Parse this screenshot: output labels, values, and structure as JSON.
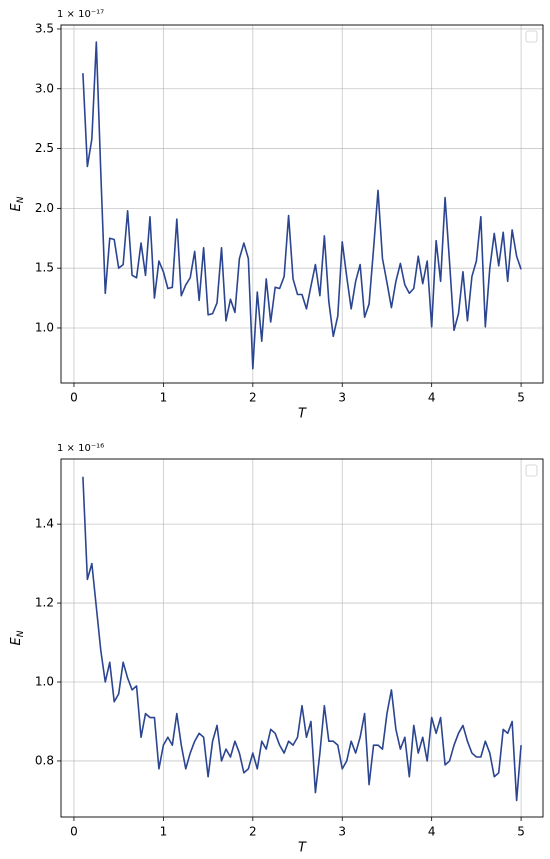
{
  "chart_data": [
    {
      "type": "line",
      "offset_text": "1 × 10⁻¹⁷",
      "xlabel": "T",
      "ylabel": {
        "base": "E",
        "sub": "N"
      },
      "color": "#2b4590",
      "grid": true,
      "legend": "upper right",
      "xlim": [
        -0.145,
        5.245
      ],
      "ylim": [
        0.54,
        3.533
      ],
      "xticks": [
        0,
        1,
        2,
        3,
        4,
        5
      ],
      "yticks": [
        {
          "value": 1,
          "label": "1.0"
        },
        1.5,
        {
          "value": 2,
          "label": "2.0"
        },
        2.5,
        {
          "value": 3,
          "label": "3.0"
        },
        3.5
      ],
      "x": [
        0.1,
        0.15,
        0.2,
        0.25,
        0.3,
        0.35,
        0.4,
        0.45,
        0.5,
        0.55,
        0.6,
        0.65,
        0.7,
        0.75,
        0.8,
        0.85,
        0.9,
        0.95,
        1.0,
        1.05,
        1.1,
        1.15,
        1.2,
        1.25,
        1.3,
        1.35,
        1.4,
        1.45,
        1.5,
        1.55,
        1.6,
        1.65,
        1.7,
        1.75,
        1.8,
        1.85,
        1.9,
        1.95,
        2.0,
        2.05,
        2.1,
        2.15,
        2.2,
        2.25,
        2.3,
        2.35,
        2.4,
        2.45,
        2.5,
        2.55,
        2.6,
        2.65,
        2.7,
        2.75,
        2.8,
        2.85,
        2.9,
        2.95,
        3.0,
        3.05,
        3.1,
        3.15,
        3.2,
        3.25,
        3.3,
        3.35,
        3.4,
        3.45,
        3.5,
        3.55,
        3.6,
        3.65,
        3.7,
        3.75,
        3.8,
        3.85,
        3.9,
        3.95,
        4.0,
        4.05,
        4.1,
        4.15,
        4.2,
        4.25,
        4.3,
        4.35,
        4.4,
        4.45,
        4.5,
        4.55,
        4.6,
        4.65,
        4.7,
        4.75,
        4.8,
        4.85,
        4.9,
        4.95,
        5.0
      ],
      "values": [
        3.13,
        2.35,
        2.58,
        3.39,
        2.3,
        1.29,
        1.75,
        1.74,
        1.5,
        1.53,
        1.98,
        1.44,
        1.42,
        1.71,
        1.44,
        1.93,
        1.25,
        1.56,
        1.47,
        1.33,
        1.34,
        1.91,
        1.27,
        1.36,
        1.42,
        1.64,
        1.23,
        1.67,
        1.11,
        1.12,
        1.21,
        1.67,
        1.06,
        1.24,
        1.13,
        1.58,
        1.71,
        1.58,
        0.66,
        1.3,
        0.89,
        1.41,
        1.05,
        1.34,
        1.33,
        1.43,
        1.94,
        1.41,
        1.28,
        1.28,
        1.16,
        1.35,
        1.53,
        1.27,
        1.77,
        1.22,
        0.93,
        1.1,
        1.72,
        1.43,
        1.16,
        1.39,
        1.53,
        1.09,
        1.2,
        1.66,
        2.15,
        1.58,
        1.38,
        1.17,
        1.39,
        1.54,
        1.36,
        1.29,
        1.33,
        1.6,
        1.37,
        1.56,
        1.01,
        1.73,
        1.39,
        2.09,
        1.55,
        0.98,
        1.12,
        1.47,
        1.06,
        1.43,
        1.56,
        1.93,
        1.01,
        1.5,
        1.79,
        1.52,
        1.8,
        1.39,
        1.82,
        1.6,
        1.49
      ]
    },
    {
      "type": "line",
      "offset_text": "1 × 10⁻¹⁶",
      "xlabel": "T",
      "ylabel": {
        "base": "E",
        "sub": "N"
      },
      "color": "#2b4590",
      "grid": true,
      "legend": "upper right",
      "xlim": [
        -0.145,
        5.245
      ],
      "ylim": [
        0.658,
        1.565
      ],
      "xticks": [
        0,
        1,
        2,
        3,
        4,
        5
      ],
      "yticks": [
        0.8,
        {
          "value": 1,
          "label": "1.0"
        },
        1.2,
        1.4
      ],
      "x": [
        0.1,
        0.15,
        0.2,
        0.25,
        0.3,
        0.35,
        0.4,
        0.45,
        0.5,
        0.55,
        0.6,
        0.65,
        0.7,
        0.75,
        0.8,
        0.85,
        0.9,
        0.95,
        1.0,
        1.05,
        1.1,
        1.15,
        1.2,
        1.25,
        1.3,
        1.35,
        1.4,
        1.45,
        1.5,
        1.55,
        1.6,
        1.65,
        1.7,
        1.75,
        1.8,
        1.85,
        1.9,
        1.95,
        2.0,
        2.05,
        2.1,
        2.15,
        2.2,
        2.25,
        2.3,
        2.35,
        2.4,
        2.45,
        2.5,
        2.55,
        2.6,
        2.65,
        2.7,
        2.75,
        2.8,
        2.85,
        2.9,
        2.95,
        3.0,
        3.05,
        3.1,
        3.15,
        3.2,
        3.25,
        3.3,
        3.35,
        3.4,
        3.45,
        3.5,
        3.55,
        3.6,
        3.65,
        3.7,
        3.75,
        3.8,
        3.85,
        3.9,
        3.95,
        4.0,
        4.05,
        4.1,
        4.15,
        4.2,
        4.25,
        4.3,
        4.35,
        4.4,
        4.45,
        4.5,
        4.55,
        4.6,
        4.65,
        4.7,
        4.75,
        4.8,
        4.85,
        4.9,
        4.95,
        5.0
      ],
      "values": [
        1.52,
        1.26,
        1.3,
        1.19,
        1.08,
        1.0,
        1.05,
        0.95,
        0.97,
        1.05,
        1.01,
        0.98,
        0.99,
        0.86,
        0.92,
        0.91,
        0.91,
        0.78,
        0.84,
        0.86,
        0.84,
        0.92,
        0.84,
        0.78,
        0.82,
        0.85,
        0.87,
        0.86,
        0.76,
        0.85,
        0.89,
        0.8,
        0.83,
        0.81,
        0.85,
        0.82,
        0.77,
        0.78,
        0.82,
        0.78,
        0.85,
        0.83,
        0.88,
        0.87,
        0.84,
        0.82,
        0.85,
        0.84,
        0.86,
        0.94,
        0.86,
        0.9,
        0.72,
        0.82,
        0.94,
        0.85,
        0.85,
        0.84,
        0.78,
        0.8,
        0.85,
        0.82,
        0.86,
        0.92,
        0.74,
        0.84,
        0.84,
        0.83,
        0.92,
        0.98,
        0.88,
        0.83,
        0.86,
        0.76,
        0.89,
        0.82,
        0.86,
        0.8,
        0.91,
        0.87,
        0.91,
        0.79,
        0.8,
        0.84,
        0.87,
        0.89,
        0.85,
        0.82,
        0.81,
        0.81,
        0.85,
        0.82,
        0.76,
        0.77,
        0.88,
        0.87,
        0.9,
        0.7,
        0.84
      ]
    }
  ]
}
